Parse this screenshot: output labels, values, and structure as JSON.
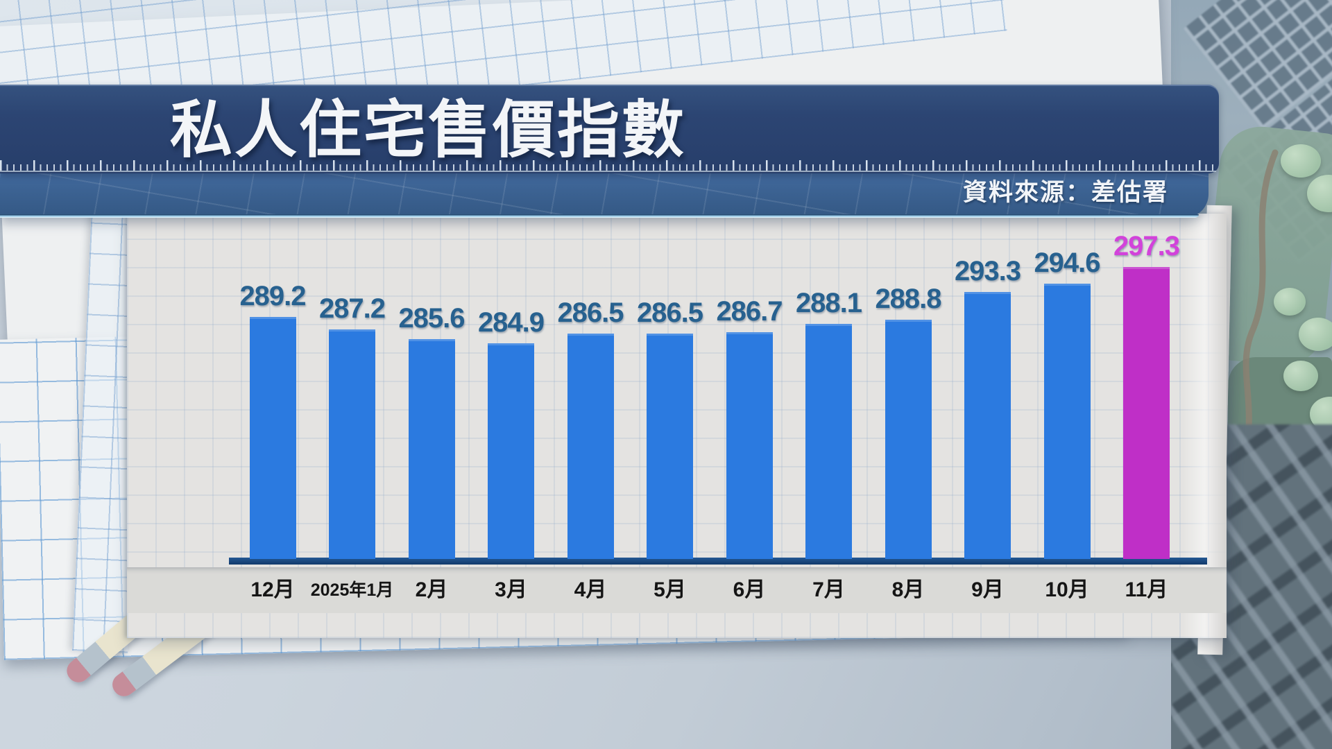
{
  "title": {
    "text": "私人住宅售價指數"
  },
  "source": {
    "label": "資料來源：差估署"
  },
  "chart_data": {
    "type": "bar",
    "title": "私人住宅售價指數",
    "source_note": "資料來源：差估署",
    "categories": [
      "12月",
      "2025年1月",
      "2月",
      "3月",
      "4月",
      "5月",
      "6月",
      "7月",
      "8月",
      "9月",
      "10月",
      "11月"
    ],
    "values": [
      289.2,
      287.2,
      285.6,
      284.9,
      286.5,
      286.5,
      286.7,
      288.1,
      288.8,
      293.3,
      294.6,
      297.3
    ],
    "highlight_index": 11,
    "xlabel": "",
    "ylabel": "",
    "ylim": [
      250,
      313
    ],
    "grid": true,
    "legend_position": "none",
    "bar_color": "#2b7ae0",
    "highlight_bar_color": "#bf2fc7",
    "value_label_color": "#27618f",
    "highlight_value_label_color": "#d243da",
    "axis_color": "#16447c",
    "month_label_color": "#151515"
  },
  "colors": {
    "banner_bg": "#2b4370",
    "source_band_bg": "#3c6397",
    "paper_bg": "#e4e3e1",
    "label_strip_bg": "#dadad7",
    "background": "#c6d0da"
  }
}
